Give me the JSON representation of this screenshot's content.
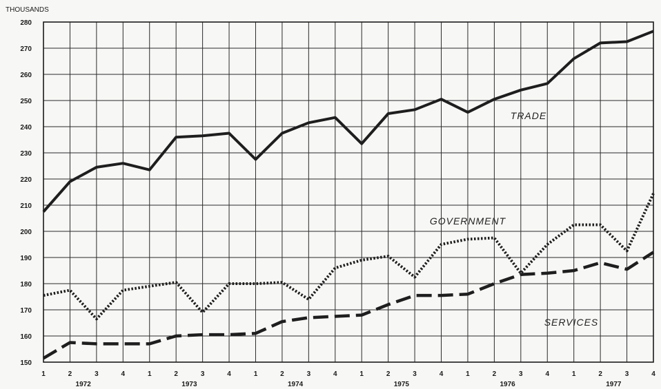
{
  "chart_data": {
    "type": "line",
    "unit_label": "THOUSANDS",
    "ylim": [
      150,
      280
    ],
    "yticks": [
      150,
      160,
      170,
      180,
      190,
      200,
      210,
      220,
      230,
      240,
      250,
      260,
      270,
      280
    ],
    "grid": true,
    "x": [
      "1",
      "2",
      "3",
      "4",
      "1",
      "2",
      "3",
      "4",
      "1",
      "2",
      "3",
      "4",
      "1",
      "2",
      "3",
      "4",
      "1",
      "2",
      "3",
      "4",
      "1",
      "2",
      "3",
      "4"
    ],
    "years": [
      "1972",
      "1973",
      "1974",
      "1975",
      "1976",
      "1977"
    ],
    "series": [
      {
        "name": "TRADE",
        "style": "solid",
        "values": [
          207.5,
          219,
          224.5,
          226,
          223.5,
          236,
          236.5,
          237.5,
          227.5,
          237.5,
          241.5,
          243.5,
          233.5,
          245,
          246.5,
          250.5,
          245.5,
          250.5,
          254,
          256.5,
          266,
          272,
          272.5,
          276.5
        ]
      },
      {
        "name": "GOVERNMENT",
        "style": "dotted",
        "values": [
          175.5,
          177.5,
          166.5,
          177.5,
          179,
          180.5,
          169,
          180,
          180,
          180.5,
          174,
          186,
          189,
          190.5,
          182.5,
          195,
          197,
          197.5,
          184,
          195,
          202.5,
          202.5,
          192.5,
          214.5
        ]
      },
      {
        "name": "SERVICES",
        "style": "dashed",
        "values": [
          151.5,
          157.5,
          157,
          157,
          157,
          160,
          160.5,
          160.5,
          161,
          165.5,
          167,
          167.5,
          168,
          172,
          175.5,
          175.5,
          176,
          180,
          183.5,
          184,
          185,
          188,
          185.5,
          192
        ]
      }
    ]
  }
}
